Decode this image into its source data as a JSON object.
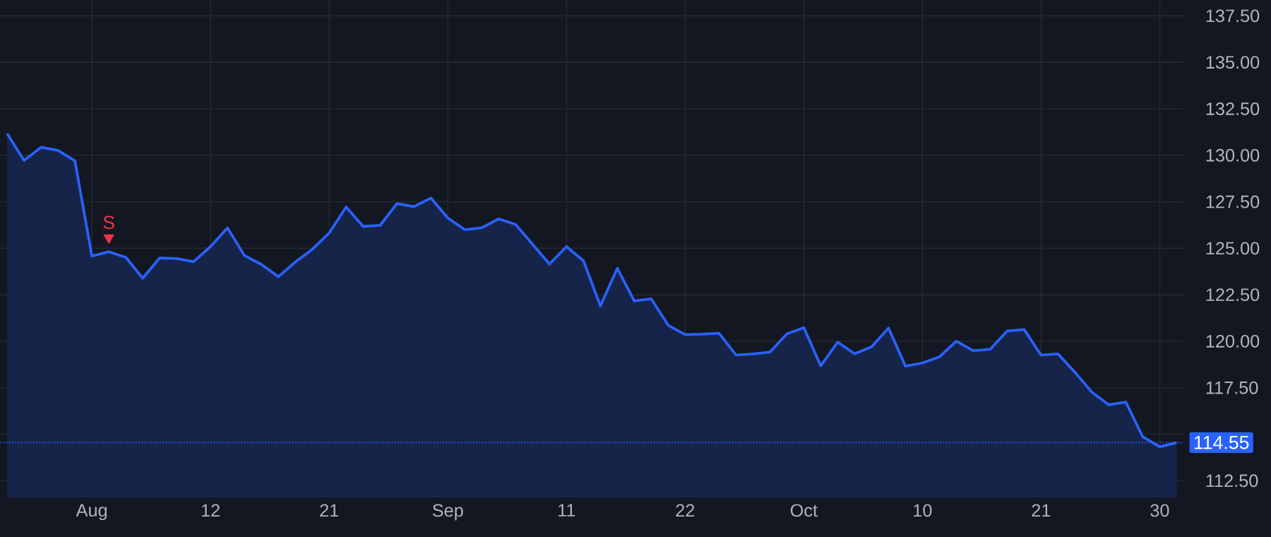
{
  "chart_data": {
    "type": "area",
    "categories": [
      null,
      null,
      null,
      null,
      null,
      "Aug",
      null,
      null,
      null,
      null,
      null,
      null,
      "12",
      null,
      null,
      null,
      null,
      null,
      null,
      "21",
      null,
      null,
      null,
      null,
      null,
      null,
      "Sep",
      null,
      null,
      null,
      null,
      null,
      null,
      "11",
      null,
      null,
      null,
      null,
      null,
      null,
      "22",
      null,
      null,
      null,
      null,
      null,
      null,
      "Oct",
      null,
      null,
      null,
      null,
      null,
      null,
      "10",
      null,
      null,
      null,
      null,
      null,
      null,
      "21",
      null,
      null,
      null,
      null,
      null,
      null,
      "30",
      null
    ],
    "series": [
      {
        "color": "#2962ff",
        "values": [
          131.17,
          129.72,
          130.43,
          130.26,
          129.7,
          124.58,
          124.81,
          124.51,
          123.39,
          124.48,
          124.45,
          124.28,
          125.09,
          126.1,
          124.61,
          124.13,
          123.47,
          124.26,
          124.94,
          125.82,
          127.22,
          126.18,
          126.23,
          127.4,
          127.24,
          127.7,
          126.63,
          126.0,
          126.1,
          126.58,
          126.28,
          125.21,
          124.15,
          125.09,
          124.33,
          121.9,
          123.92,
          122.17,
          122.28,
          120.86,
          120.35,
          120.38,
          120.43,
          119.26,
          119.32,
          119.41,
          120.4,
          120.73,
          118.68,
          119.95,
          119.32,
          119.7,
          120.71,
          118.66,
          118.83,
          119.16,
          120.0,
          119.49,
          119.57,
          120.55,
          120.63,
          119.26,
          119.32,
          118.33,
          117.26,
          116.58,
          116.73,
          114.86,
          114.32,
          114.55
        ]
      },
      {
        "type": "scatter",
        "name": "S",
        "color": "#f23645",
        "marker": "triangle",
        "values": [
          null,
          null,
          null,
          null,
          null,
          null,
          125.57,
          null,
          null,
          null,
          null,
          null,
          null,
          null,
          null,
          null,
          null,
          null,
          null,
          null,
          null,
          null,
          null,
          null,
          null,
          null,
          null,
          null,
          null,
          null,
          null,
          null,
          null,
          null,
          null,
          null,
          null,
          null,
          null,
          null,
          null,
          null,
          null,
          null,
          null,
          null,
          null,
          null,
          null,
          null,
          null,
          null,
          null,
          null,
          null,
          null,
          null,
          null,
          null,
          null,
          null,
          null,
          null,
          null,
          null,
          null,
          null,
          null,
          null,
          null
        ]
      }
    ],
    "ylim": [
      111.6,
      138.35
    ],
    "yticks": [
      {
        "value": 112.5,
        "label": "112.50"
      },
      {
        "value": 115,
        "label": null
      },
      {
        "value": 117.5,
        "label": "117.50"
      },
      {
        "value": 120,
        "label": "120.00"
      },
      {
        "value": 122.5,
        "label": "122.50"
      },
      {
        "value": 125,
        "label": "125.00"
      },
      {
        "value": 127.5,
        "label": "127.50"
      },
      {
        "value": 130,
        "label": "130.00"
      },
      {
        "value": 132.5,
        "label": "132.50"
      },
      {
        "value": 135,
        "label": "135.00"
      },
      {
        "value": 137.5,
        "label": "137.50"
      }
    ],
    "grid": true,
    "ref_lines": [
      {
        "axis": "y",
        "value": 114.55,
        "label": "114.55",
        "color": "#2962ff",
        "line_style": "dotted"
      }
    ]
  }
}
